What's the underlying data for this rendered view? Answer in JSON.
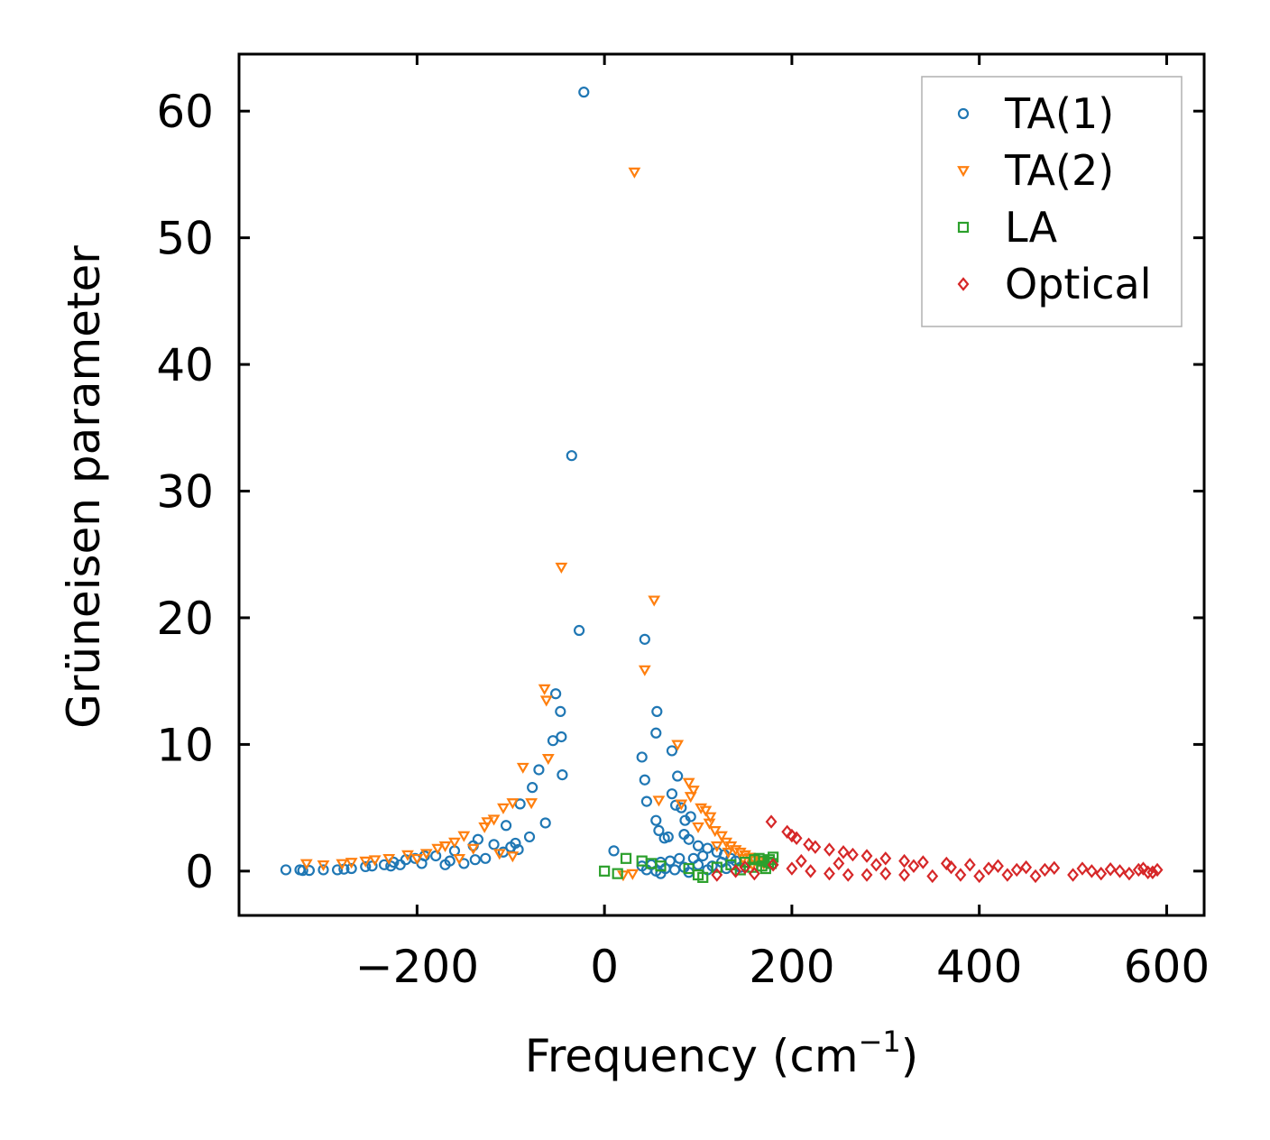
{
  "chart_data": {
    "type": "scatter",
    "title": "",
    "xlabel": "Frequency (cm",
    "xlabel_sup": "−1",
    "xlabel_end": ")",
    "ylabel": "Grüneisen parameter",
    "xlim": [
      -390,
      640
    ],
    "ylim": [
      -3.5,
      64.5
    ],
    "xticks": [
      -200,
      0,
      200,
      400,
      600
    ],
    "xtick_labels": [
      "−200",
      "0",
      "200",
      "400",
      "600"
    ],
    "yticks": [
      0,
      10,
      20,
      30,
      40,
      50,
      60
    ],
    "ytick_labels": [
      "0",
      "10",
      "20",
      "30",
      "40",
      "50",
      "60"
    ],
    "grid": false,
    "legend_position": "top-right",
    "series": [
      {
        "name": "TA(1)",
        "marker": "circle",
        "color": "#1f77b4",
        "points": [
          [
            -22,
            61.5
          ],
          [
            -35,
            32.8
          ],
          [
            -27,
            19.0
          ],
          [
            -52,
            14.0
          ],
          [
            -47,
            12.6
          ],
          [
            -55,
            10.3
          ],
          [
            -46,
            10.6
          ],
          [
            -45,
            7.6
          ],
          [
            -70,
            8.0
          ],
          [
            -77,
            6.6
          ],
          [
            -90,
            5.3
          ],
          [
            -63,
            3.8
          ],
          [
            -80,
            2.7
          ],
          [
            -105,
            3.6
          ],
          [
            -95,
            2.2
          ],
          [
            -100,
            1.9
          ],
          [
            -92,
            1.7
          ],
          [
            -108,
            1.5
          ],
          [
            -118,
            2.1
          ],
          [
            -135,
            2.5
          ],
          [
            -140,
            2.0
          ],
          [
            -127,
            1.0
          ],
          [
            -138,
            0.9
          ],
          [
            -160,
            1.6
          ],
          [
            -165,
            0.8
          ],
          [
            -150,
            0.6
          ],
          [
            -180,
            1.2
          ],
          [
            -192,
            1.2
          ],
          [
            -202,
            1.0
          ],
          [
            -212,
            0.9
          ],
          [
            -225,
            0.7
          ],
          [
            -235,
            0.5
          ],
          [
            -248,
            0.4
          ],
          [
            -255,
            0.35
          ],
          [
            -270,
            0.2
          ],
          [
            -285,
            0.1
          ],
          [
            -300,
            0.1
          ],
          [
            -315,
            0.05
          ],
          [
            -325,
            0.1
          ],
          [
            -340,
            0.1
          ],
          [
            -322,
            0.05
          ],
          [
            -278,
            0.15
          ],
          [
            -228,
            0.4
          ],
          [
            -218,
            0.5
          ],
          [
            -195,
            0.6
          ],
          [
            -170,
            0.5
          ],
          [
            43,
            18.3
          ],
          [
            56,
            12.6
          ],
          [
            55,
            10.9
          ],
          [
            40,
            9.0
          ],
          [
            43,
            7.2
          ],
          [
            72,
            9.5
          ],
          [
            78,
            7.5
          ],
          [
            72,
            6.1
          ],
          [
            45,
            5.5
          ],
          [
            76,
            5.2
          ],
          [
            82,
            5.0
          ],
          [
            92,
            4.3
          ],
          [
            86,
            4.0
          ],
          [
            55,
            4.0
          ],
          [
            58,
            3.2
          ],
          [
            64,
            2.6
          ],
          [
            68,
            2.7
          ],
          [
            85,
            2.9
          ],
          [
            90,
            2.5
          ],
          [
            100,
            2.0
          ],
          [
            110,
            1.8
          ],
          [
            120,
            1.5
          ],
          [
            105,
            1.2
          ],
          [
            128,
            1.3
          ],
          [
            135,
            1.0
          ],
          [
            140,
            0.8
          ],
          [
            95,
            1.0
          ],
          [
            80,
            1.0
          ],
          [
            70,
            0.8
          ],
          [
            60,
            0.7
          ],
          [
            50,
            0.5
          ],
          [
            40,
            0.4
          ],
          [
            45,
            0.1
          ],
          [
            55,
            0.0
          ],
          [
            65,
            0.2
          ],
          [
            75,
            0.1
          ],
          [
            85,
            0.3
          ],
          [
            100,
            0.5
          ],
          [
            115,
            0.4
          ],
          [
            125,
            0.7
          ],
          [
            145,
            0.3
          ],
          [
            60,
            -0.2
          ],
          [
            90,
            -0.1
          ],
          [
            110,
            0.1
          ],
          [
            130,
            0.2
          ],
          [
            10,
            1.6
          ]
        ]
      },
      {
        "name": "TA(2)",
        "marker": "triangle-down",
        "color": "#ff7f0e",
        "points": [
          [
            32,
            55.2
          ],
          [
            -46,
            24.0
          ],
          [
            53,
            21.4
          ],
          [
            43,
            15.9
          ],
          [
            -64,
            14.4
          ],
          [
            -62,
            13.5
          ],
          [
            -60,
            8.9
          ],
          [
            -87,
            8.2
          ],
          [
            -78,
            5.4
          ],
          [
            -98,
            5.4
          ],
          [
            -108,
            5.0
          ],
          [
            -118,
            4.1
          ],
          [
            -125,
            3.9
          ],
          [
            -128,
            3.5
          ],
          [
            -150,
            2.8
          ],
          [
            -160,
            2.3
          ],
          [
            -170,
            2.0
          ],
          [
            -178,
            1.8
          ],
          [
            -190,
            1.4
          ],
          [
            -210,
            1.3
          ],
          [
            -230,
            1.0
          ],
          [
            -255,
            0.8
          ],
          [
            -280,
            0.6
          ],
          [
            -300,
            0.5
          ],
          [
            -318,
            0.6
          ],
          [
            -98,
            1.2
          ],
          [
            -112,
            1.4
          ],
          [
            -140,
            1.8
          ],
          [
            -155,
            1.0
          ],
          [
            -200,
            1.0
          ],
          [
            -245,
            0.9
          ],
          [
            -270,
            0.7
          ],
          [
            78,
            10.0
          ],
          [
            58,
            5.6
          ],
          [
            90,
            7.0
          ],
          [
            95,
            6.4
          ],
          [
            92,
            5.9
          ],
          [
            82,
            5.3
          ],
          [
            103,
            5.0
          ],
          [
            108,
            4.8
          ],
          [
            113,
            4.3
          ],
          [
            100,
            3.5
          ],
          [
            112,
            3.8
          ],
          [
            118,
            3.2
          ],
          [
            125,
            2.8
          ],
          [
            130,
            2.3
          ],
          [
            135,
            2.0
          ],
          [
            140,
            1.7
          ],
          [
            145,
            1.5
          ],
          [
            150,
            1.3
          ],
          [
            155,
            1.1
          ],
          [
            160,
            0.9
          ],
          [
            165,
            0.8
          ],
          [
            170,
            0.6
          ],
          [
            120,
            2.0
          ],
          [
            132,
            1.5
          ],
          [
            148,
            1.0
          ],
          [
            158,
            0.5
          ],
          [
            30,
            -0.2
          ],
          [
            20,
            -0.3
          ]
        ]
      },
      {
        "name": "LA",
        "marker": "square",
        "color": "#2ca02c",
        "points": [
          [
            23,
            1.0
          ],
          [
            0,
            0.0
          ],
          [
            14,
            -0.2
          ],
          [
            40,
            0.8
          ],
          [
            50,
            0.6
          ],
          [
            60,
            0.4
          ],
          [
            90,
            0.2
          ],
          [
            100,
            -0.3
          ],
          [
            105,
            -0.5
          ],
          [
            120,
            0.3
          ],
          [
            135,
            0.5
          ],
          [
            150,
            0.7
          ],
          [
            160,
            0.9
          ],
          [
            165,
            1.0
          ],
          [
            170,
            0.8
          ],
          [
            175,
            0.7
          ],
          [
            168,
            0.4
          ],
          [
            172,
            0.2
          ],
          [
            158,
            0.3
          ],
          [
            145,
            0.1
          ],
          [
            178,
            0.6
          ],
          [
            180,
            1.1
          ],
          [
            176,
            0.9
          ]
        ]
      },
      {
        "name": "Optical",
        "marker": "diamond",
        "color": "#d62728",
        "points": [
          [
            178,
            3.9
          ],
          [
            195,
            3.1
          ],
          [
            200,
            2.8
          ],
          [
            205,
            2.6
          ],
          [
            218,
            2.1
          ],
          [
            225,
            1.9
          ],
          [
            240,
            1.7
          ],
          [
            255,
            1.5
          ],
          [
            265,
            1.3
          ],
          [
            280,
            1.2
          ],
          [
            300,
            1.0
          ],
          [
            320,
            0.8
          ],
          [
            340,
            0.7
          ],
          [
            365,
            0.6
          ],
          [
            390,
            0.5
          ],
          [
            420,
            0.4
          ],
          [
            450,
            0.3
          ],
          [
            480,
            0.25
          ],
          [
            510,
            0.2
          ],
          [
            540,
            0.15
          ],
          [
            570,
            0.1
          ],
          [
            590,
            0.1
          ],
          [
            180,
            0.5
          ],
          [
            200,
            0.2
          ],
          [
            220,
            0.0
          ],
          [
            240,
            -0.2
          ],
          [
            260,
            -0.3
          ],
          [
            280,
            -0.3
          ],
          [
            300,
            -0.2
          ],
          [
            320,
            -0.3
          ],
          [
            350,
            -0.4
          ],
          [
            380,
            -0.3
          ],
          [
            400,
            -0.4
          ],
          [
            430,
            -0.3
          ],
          [
            460,
            -0.4
          ],
          [
            500,
            -0.3
          ],
          [
            530,
            -0.2
          ],
          [
            560,
            -0.2
          ],
          [
            580,
            -0.1
          ],
          [
            210,
            0.8
          ],
          [
            250,
            0.6
          ],
          [
            290,
            0.5
          ],
          [
            330,
            0.4
          ],
          [
            370,
            0.3
          ],
          [
            410,
            0.2
          ],
          [
            440,
            0.1
          ],
          [
            470,
            0.1
          ],
          [
            520,
            0.0
          ],
          [
            550,
            0.0
          ],
          [
            575,
            0.2
          ],
          [
            585,
            -0.1
          ],
          [
            120,
            -0.3
          ],
          [
            140,
            0.0
          ],
          [
            160,
            -0.2
          ],
          [
            150,
            0.3
          ]
        ]
      }
    ]
  }
}
